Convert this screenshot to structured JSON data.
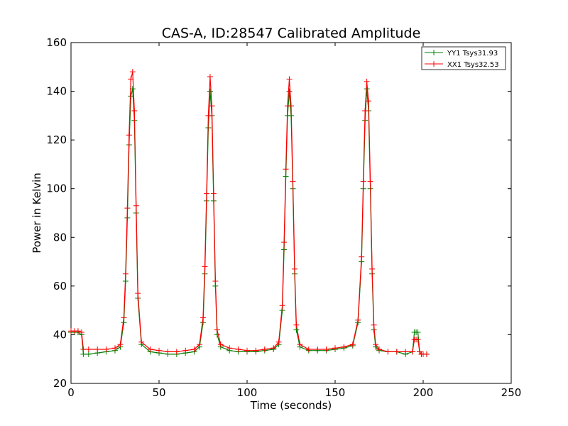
{
  "chart_data": {
    "type": "line",
    "title": "CAS-A, ID:28547 Calibrated Amplitude",
    "xlabel": "Time (seconds)",
    "ylabel": "Power in Kelvin",
    "xlim": [
      0,
      250
    ],
    "ylim": [
      20,
      160
    ],
    "xticks": [
      0,
      50,
      100,
      150,
      200,
      250
    ],
    "yticks": [
      20,
      40,
      60,
      80,
      100,
      120,
      140,
      160
    ],
    "grid": false,
    "legend_position": "top-right",
    "series": [
      {
        "name": "YY1 Tsys31.93",
        "color": "#008000",
        "marker": "+",
        "x": [
          0,
          2,
          4,
          6,
          7,
          10,
          15,
          20,
          25,
          28,
          30,
          31,
          32,
          33,
          34,
          35,
          36,
          37,
          38,
          40,
          45,
          50,
          55,
          60,
          65,
          70,
          73,
          75,
          76,
          77,
          78,
          79,
          80,
          81,
          82,
          83,
          85,
          90,
          95,
          100,
          105,
          110,
          115,
          118,
          120,
          121,
          122,
          123,
          124,
          125,
          126,
          127,
          128,
          130,
          135,
          140,
          145,
          150,
          155,
          160,
          163,
          165,
          166,
          167,
          168,
          169,
          170,
          171,
          172,
          173,
          175,
          180,
          185,
          190,
          194,
          195,
          196,
          197,
          198,
          199,
          200,
          202
        ],
        "y": [
          41,
          41,
          41,
          40,
          32,
          32,
          32.5,
          33,
          33.5,
          35,
          45,
          62,
          88,
          118,
          138,
          141,
          128,
          90,
          55,
          36,
          33,
          32.5,
          32,
          32,
          32.5,
          33,
          35,
          45,
          65,
          95,
          125,
          140,
          130,
          95,
          60,
          40,
          35,
          33.5,
          33,
          33,
          33,
          33.5,
          34,
          36,
          50,
          75,
          105,
          130,
          140,
          130,
          100,
          65,
          42,
          35,
          33.5,
          33.5,
          33.5,
          34,
          34.5,
          35.5,
          45,
          70,
          100,
          128,
          141,
          132,
          100,
          65,
          42,
          35,
          33.5,
          33,
          33,
          32,
          33,
          41,
          41,
          41,
          33,
          32,
          32,
          32
        ]
      },
      {
        "name": "XX1 Tsys32.53",
        "color": "#ff0000",
        "marker": "+",
        "x": [
          0,
          2,
          4,
          6,
          7,
          10,
          15,
          20,
          25,
          28,
          30,
          31,
          32,
          33,
          34,
          35,
          36,
          37,
          38,
          40,
          45,
          50,
          55,
          60,
          65,
          70,
          73,
          75,
          76,
          77,
          78,
          79,
          80,
          81,
          82,
          83,
          85,
          90,
          95,
          100,
          105,
          110,
          115,
          118,
          120,
          121,
          122,
          123,
          124,
          125,
          126,
          127,
          128,
          130,
          135,
          140,
          145,
          150,
          155,
          160,
          163,
          165,
          166,
          167,
          168,
          169,
          170,
          171,
          172,
          173,
          175,
          180,
          185,
          190,
          194,
          195,
          196,
          197,
          198,
          199,
          200,
          202
        ],
        "y": [
          41.5,
          41.5,
          41.5,
          41,
          34,
          34,
          34,
          34,
          34.5,
          36,
          47,
          65,
          92,
          122,
          145,
          148,
          132,
          93,
          57,
          37,
          34,
          33.5,
          33,
          33,
          33.5,
          34,
          36,
          47,
          68,
          98,
          130,
          146,
          134,
          98,
          62,
          42,
          36,
          34.5,
          34,
          33.5,
          33.5,
          34,
          34.5,
          37,
          52,
          78,
          108,
          134,
          145,
          134,
          103,
          67,
          44,
          36,
          34,
          34,
          34,
          34.5,
          35,
          36,
          46,
          72,
          103,
          132,
          144,
          136,
          103,
          67,
          44,
          36,
          34,
          33,
          33,
          33,
          33,
          38,
          38,
          38,
          33,
          32,
          32,
          32
        ]
      }
    ]
  }
}
